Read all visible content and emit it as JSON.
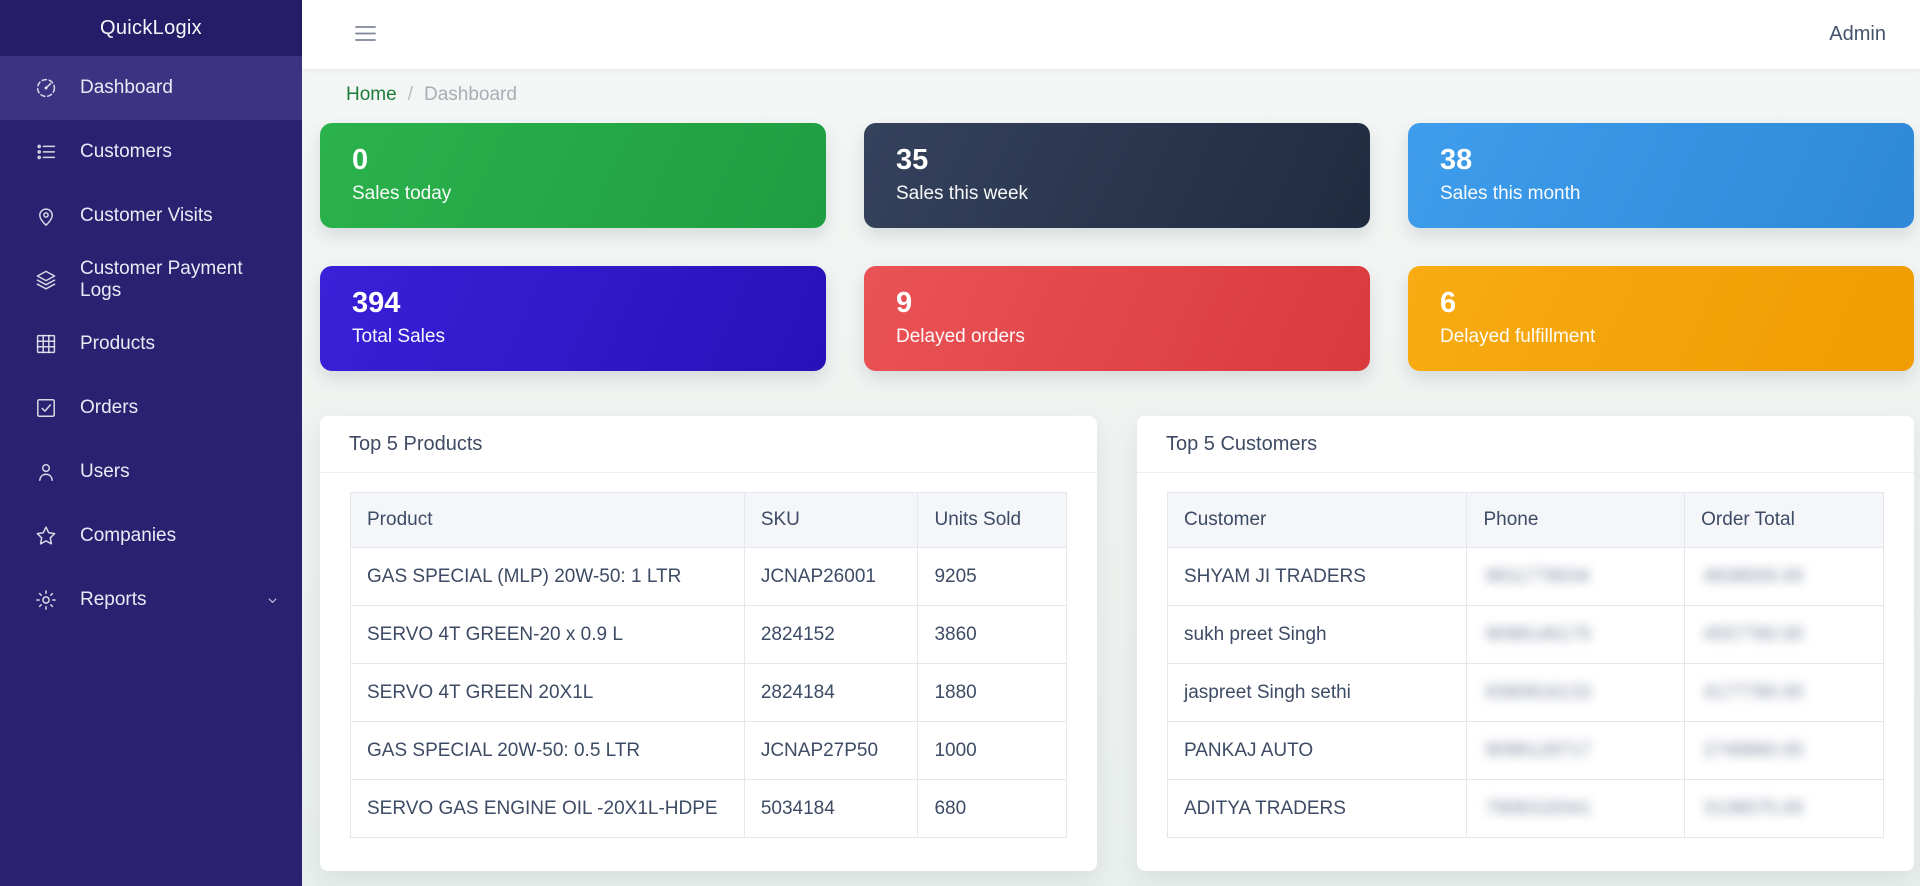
{
  "app": {
    "brand": "QuickLogix",
    "user_menu": "Admin"
  },
  "sidebar": {
    "items": [
      {
        "id": "dashboard",
        "label": "Dashboard",
        "icon": "gauge",
        "active": true
      },
      {
        "id": "customers",
        "label": "Customers",
        "icon": "list"
      },
      {
        "id": "customer-visits",
        "label": "Customer Visits",
        "icon": "map-pin"
      },
      {
        "id": "customer-payment-logs",
        "label": "Customer Payment Logs",
        "icon": "layers"
      },
      {
        "id": "products",
        "label": "Products",
        "icon": "grid"
      },
      {
        "id": "orders",
        "label": "Orders",
        "icon": "check-square"
      },
      {
        "id": "users",
        "label": "Users",
        "icon": "user"
      },
      {
        "id": "companies",
        "label": "Companies",
        "icon": "star"
      },
      {
        "id": "reports",
        "label": "Reports",
        "icon": "gear",
        "expandable": true
      }
    ]
  },
  "breadcrumb": {
    "home": "Home",
    "separator": "/",
    "current": "Dashboard"
  },
  "stats": [
    {
      "id": "sales-today",
      "value": "0",
      "label": "Sales today",
      "gradient": [
        "#2bb24c",
        "#1f9e41"
      ]
    },
    {
      "id": "sales-this-week",
      "value": "35",
      "label": "Sales this week",
      "gradient": [
        "#35425d",
        "#202b40"
      ]
    },
    {
      "id": "sales-this-month",
      "value": "38",
      "label": "Sales this month",
      "gradient": [
        "#3e9dec",
        "#2f88d8"
      ]
    },
    {
      "id": "total-sales",
      "value": "394",
      "label": "Total Sales",
      "gradient": [
        "#3a20d8",
        "#2a10b8"
      ]
    },
    {
      "id": "delayed-orders",
      "value": "9",
      "label": "Delayed orders",
      "gradient": [
        "#ea5356",
        "#d83a3d"
      ]
    },
    {
      "id": "delayed-fulfillment",
      "value": "6",
      "label": "Delayed fulfillment",
      "gradient": [
        "#f8ab12",
        "#f09c02"
      ]
    }
  ],
  "products_panel": {
    "title": "Top 5 Products",
    "columns": [
      "Product",
      "SKU",
      "Units Sold"
    ],
    "rows": [
      [
        "GAS SPECIAL (MLP) 20W-50: 1 LTR",
        "JCNAP26001",
        "9205"
      ],
      [
        "SERVO 4T GREEN-20 x 0.9 L",
        "2824152",
        "3860"
      ],
      [
        "SERVO 4T GREEN 20X1L",
        "2824184",
        "1880"
      ],
      [
        "GAS SPECIAL 20W-50: 0.5 LTR",
        "JCNAP27P50",
        "1000"
      ],
      [
        "SERVO GAS ENGINE OIL -20X1L-HDPE",
        "5034184",
        "680"
      ]
    ]
  },
  "customers_panel": {
    "title": "Top 5 Customers",
    "columns": [
      "Customer",
      "Phone",
      "Order Total"
    ],
    "masked_columns": [
      1,
      2
    ],
    "rows": [
      [
        "SHYAM JI TRADERS",
        "9811778034",
        "4838000.00"
      ],
      [
        "sukh preet Singh",
        "9098146175",
        "4557760.00"
      ],
      [
        "jaspreet Singh sethi",
        "8380816133",
        "4177780.00"
      ],
      [
        "PANKAJ AUTO",
        "9098128717",
        "2748860.00"
      ],
      [
        "ADITYA TRADERS",
        "7908318341",
        "3138075.00"
      ]
    ]
  }
}
